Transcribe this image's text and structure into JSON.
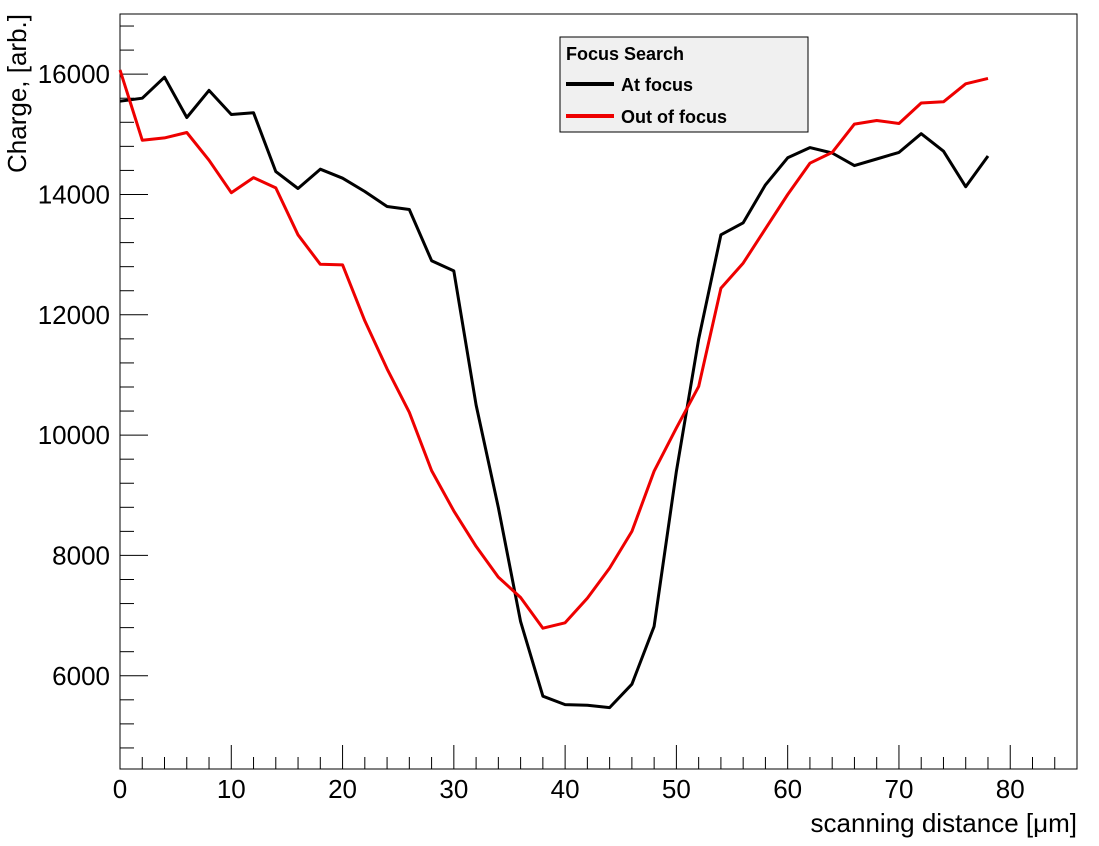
{
  "chart_data": {
    "type": "line",
    "title": "",
    "xlabel": "scanning distance [μm]",
    "ylabel": "Charge, [arb.]",
    "xlim": [
      0,
      86
    ],
    "ylim": [
      4450,
      17000
    ],
    "xticks": [
      0,
      10,
      20,
      30,
      40,
      50,
      60,
      70,
      80
    ],
    "yticks": [
      6000,
      8000,
      10000,
      12000,
      14000,
      16000
    ],
    "grid": false,
    "legend": {
      "title": "Focus Search",
      "placement": "top-right"
    },
    "series": [
      {
        "name": "At focus",
        "color": "#000000",
        "x": [
          0,
          2,
          4,
          6,
          8,
          10,
          12,
          14,
          16,
          18,
          20,
          22,
          24,
          26,
          28,
          30,
          32,
          34,
          36,
          38,
          40,
          42,
          44,
          46,
          48,
          50,
          52,
          54,
          56,
          58,
          60,
          62,
          64,
          66,
          68,
          70,
          72,
          74,
          76,
          78
        ],
        "y": [
          15550,
          15600,
          15950,
          15280,
          15730,
          15330,
          15360,
          14380,
          14100,
          14420,
          14270,
          14050,
          13800,
          13750,
          12900,
          12730,
          10500,
          8800,
          6900,
          5660,
          5520,
          5510,
          5470,
          5860,
          6820,
          9400,
          11600,
          13330,
          13530,
          14160,
          14610,
          14780,
          14690,
          14480,
          14590,
          14700,
          15010,
          14720,
          14130,
          14640
        ]
      },
      {
        "name": "Out of focus",
        "color": "#ee0000",
        "x": [
          0,
          2,
          4,
          6,
          8,
          10,
          12,
          14,
          16,
          18,
          20,
          22,
          24,
          26,
          28,
          30,
          32,
          34,
          36,
          38,
          40,
          42,
          44,
          46,
          48,
          50,
          52,
          54,
          56,
          58,
          60,
          62,
          64,
          66,
          68,
          70,
          72,
          74,
          76,
          78
        ],
        "y": [
          16070,
          14900,
          14940,
          15030,
          14570,
          14030,
          14280,
          14110,
          13330,
          12840,
          12830,
          11900,
          11100,
          10380,
          9410,
          8740,
          8150,
          7640,
          7300,
          6790,
          6880,
          7290,
          7790,
          8400,
          9400,
          10120,
          10810,
          12440,
          12860,
          13430,
          14000,
          14520,
          14700,
          15170,
          15230,
          15180,
          15520,
          15540,
          15840,
          15930
        ]
      }
    ]
  }
}
